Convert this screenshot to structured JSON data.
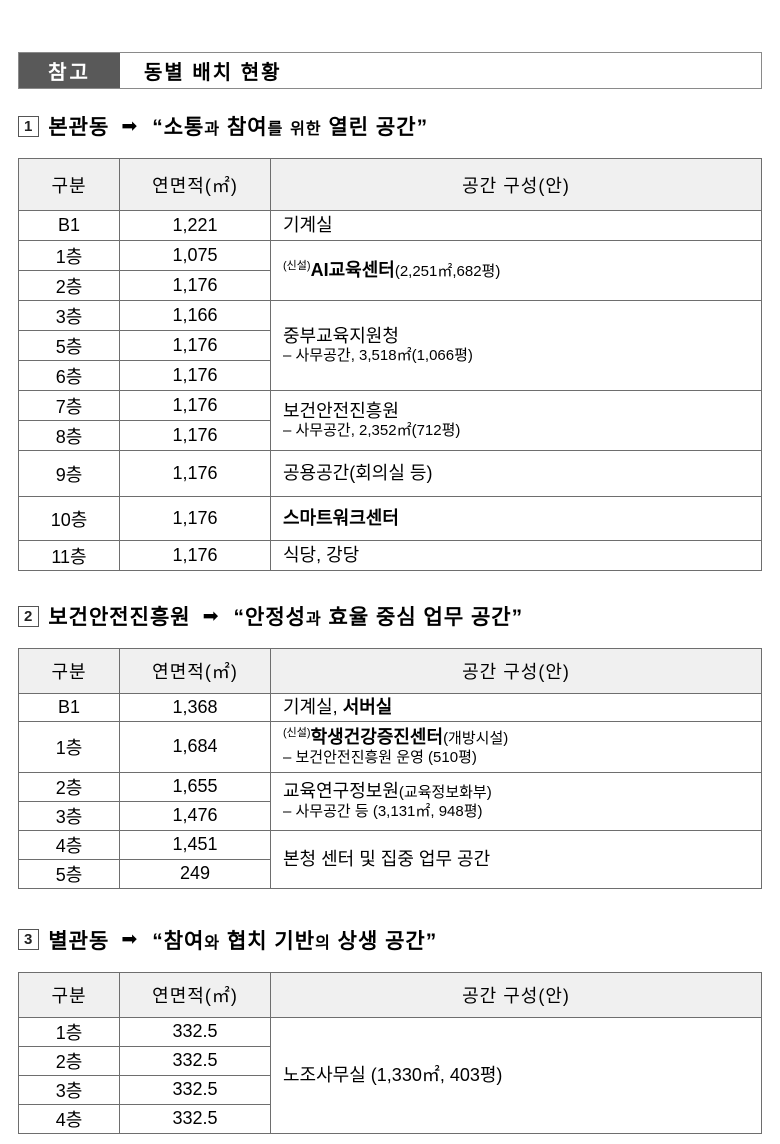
{
  "header": {
    "badge": "참고",
    "title": "동별 배치 현황"
  },
  "arrow": "➡",
  "table_columns": [
    "구분",
    "연면적(㎡)",
    "공간 구성(안)"
  ],
  "sections": [
    {
      "number": "1",
      "name": "본관동",
      "quote": [
        {
          "t": "“소통"
        },
        {
          "t": "과",
          "small": true
        },
        {
          "t": " 참여"
        },
        {
          "t": "를",
          "small": true
        },
        {
          "t": " "
        },
        {
          "t": "위한",
          "small": true
        },
        {
          "t": " 열린 공간”"
        }
      ],
      "table": {
        "columns": [
          "구분",
          "연면적(㎡)",
          "공간 구성(안)"
        ],
        "rows": [
          {
            "floor": "B1",
            "area": "1,221",
            "space": {
              "rowspan": 1,
              "lines": [
                {
                  "segs": [
                    {
                      "t": "기계실"
                    }
                  ]
                }
              ]
            }
          },
          {
            "floor": "1층",
            "area": "1,075",
            "space": {
              "rowspan": 2,
              "lines": [
                {
                  "segs": [
                    {
                      "t": "(신설)",
                      "sup": true
                    },
                    {
                      "t": "AI교육센터",
                      "b": true
                    },
                    {
                      "t": "(2,251㎡,682평)",
                      "mid": true
                    }
                  ]
                }
              ]
            }
          },
          {
            "floor": "2층",
            "area": "1,176"
          },
          {
            "floor": "3층",
            "area": "1,166",
            "space": {
              "rowspan": 3,
              "lines": [
                {
                  "segs": [
                    {
                      "t": "중부교육지원청"
                    }
                  ]
                },
                {
                  "cls": "sub",
                  "segs": [
                    {
                      "t": "– 사무공간, 3,518㎡(1,066평)"
                    }
                  ]
                }
              ]
            }
          },
          {
            "floor": "5층",
            "area": "1,176"
          },
          {
            "floor": "6층",
            "area": "1,176"
          },
          {
            "floor": "7층",
            "area": "1,176",
            "space": {
              "rowspan": 2,
              "lines": [
                {
                  "segs": [
                    {
                      "t": "보건안전진흥원"
                    }
                  ]
                },
                {
                  "cls": "sub",
                  "segs": [
                    {
                      "t": "– 사무공간, 2,352㎡(712평)"
                    }
                  ]
                }
              ]
            }
          },
          {
            "floor": "8층",
            "area": "1,176"
          },
          {
            "floor": "9층",
            "area": "1,176",
            "space": {
              "rowspan": 1,
              "lines": [
                {
                  "segs": [
                    {
                      "t": "공용공간(회의실 등)"
                    }
                  ]
                }
              ]
            }
          },
          {
            "floor": "10층",
            "area": "1,176",
            "space": {
              "rowspan": 1,
              "lines": [
                {
                  "segs": [
                    {
                      "t": "스마트워크센터",
                      "b": true
                    }
                  ]
                }
              ]
            }
          },
          {
            "floor": "11층",
            "area": "1,176",
            "space": {
              "rowspan": 1,
              "lines": [
                {
                  "segs": [
                    {
                      "t": "식당, 강당"
                    }
                  ]
                }
              ]
            }
          }
        ]
      }
    },
    {
      "number": "2",
      "name": "보건안전진흥원",
      "quote": [
        {
          "t": "“안정성"
        },
        {
          "t": "과",
          "small": true
        },
        {
          "t": " 효율 중심 업무 공간”"
        }
      ],
      "table": {
        "columns": [
          "구분",
          "연면적(㎡)",
          "공간 구성(안)"
        ],
        "rows": [
          {
            "floor": "B1",
            "area": "1,368",
            "space": {
              "rowspan": 1,
              "lines": [
                {
                  "segs": [
                    {
                      "t": "기계실, "
                    },
                    {
                      "t": "서버실",
                      "b": true
                    }
                  ]
                }
              ]
            }
          },
          {
            "floor": "1층",
            "area": "1,684",
            "space": {
              "rowspan": 1,
              "lines": [
                {
                  "segs": [
                    {
                      "t": "(신설)",
                      "sup": true
                    },
                    {
                      "t": "학생건강증진센터",
                      "b": true
                    },
                    {
                      "t": "(개방시설)",
                      "mid": true
                    }
                  ]
                },
                {
                  "cls": "sub",
                  "segs": [
                    {
                      "t": "– 보건안전진흥원 운영 (510평)"
                    }
                  ]
                }
              ]
            }
          },
          {
            "floor": "2층",
            "area": "1,655",
            "space": {
              "rowspan": 2,
              "lines": [
                {
                  "segs": [
                    {
                      "t": "교육연구정보원"
                    },
                    {
                      "t": "(교육정보화부)",
                      "mid": true
                    }
                  ]
                },
                {
                  "cls": "sub",
                  "segs": [
                    {
                      "t": "– 사무공간 등 (3,131㎡, 948평)"
                    }
                  ]
                }
              ]
            }
          },
          {
            "floor": "3층",
            "area": "1,476"
          },
          {
            "floor": "4층",
            "area": "1,451",
            "space": {
              "rowspan": 2,
              "lines": [
                {
                  "segs": [
                    {
                      "t": "본청 센터 및 집중 업무 공간"
                    }
                  ]
                }
              ]
            }
          },
          {
            "floor": "5층",
            "area": "249"
          }
        ]
      }
    },
    {
      "number": "3",
      "name": "별관동",
      "quote": [
        {
          "t": "“참여"
        },
        {
          "t": "와",
          "small": true
        },
        {
          "t": " 협치 기반"
        },
        {
          "t": "의",
          "small": true
        },
        {
          "t": " 상생 공간”"
        }
      ],
      "table": {
        "columns": [
          "구분",
          "연면적(㎡)",
          "공간 구성(안)"
        ],
        "rows": [
          {
            "floor": "1층",
            "area": "332.5",
            "space": {
              "rowspan": 4,
              "lines": [
                {
                  "segs": [
                    {
                      "t": "노조사무실 (1,330㎡, 403평)"
                    }
                  ]
                }
              ]
            }
          },
          {
            "floor": "2층",
            "area": "332.5"
          },
          {
            "floor": "3층",
            "area": "332.5"
          },
          {
            "floor": "4층",
            "area": "332.5"
          }
        ]
      }
    }
  ]
}
